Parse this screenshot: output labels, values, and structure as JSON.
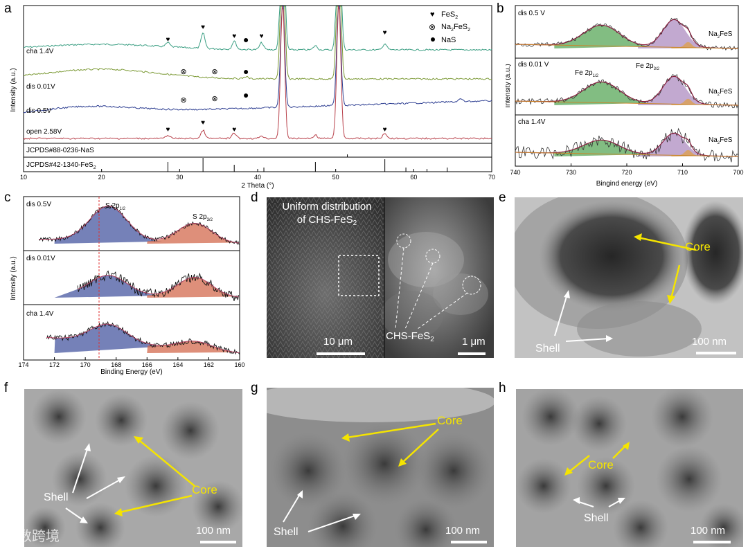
{
  "panels": {
    "a": "a",
    "b": "b",
    "c": "c",
    "d": "d",
    "e": "e",
    "f": "f",
    "g": "g",
    "h": "h"
  },
  "panel_a": {
    "legend": [
      "FeS2",
      "Na2FeS2",
      "NaS"
    ],
    "curves": [
      "cha 1.4V",
      "dis 0.01V",
      "dis 0.5V",
      "open 2.58V"
    ],
    "refs": [
      "JCPDS#88-0236-NaS",
      "JCPDS#42-1340-FeS2"
    ],
    "xlabel": "2 Theta (°)",
    "ylabel": "Intensity (a.u.)",
    "xticks": [
      "10",
      "20",
      "30",
      "40",
      "50",
      "60",
      "70"
    ]
  },
  "panel_b": {
    "rows": [
      "dis 0.5 V",
      "dis 0.01 V",
      "cha 1.4V"
    ],
    "peak_fe_half": "Fe 2p1/2",
    "peak_fe_three": "Fe 2p3/2",
    "compound": "Na2FeS",
    "xlabel": "Bingind energy (eV)",
    "ylabel": "Intensity (a.u.)",
    "xticks": [
      "740",
      "730",
      "720",
      "710",
      "700"
    ]
  },
  "panel_c": {
    "rows": [
      "dis 0.5V",
      "dis 0.01V",
      "cha 1.4V"
    ],
    "peak_s_half": "S 2p1/2",
    "peak_s_three": "S 2p3/2",
    "xlabel": "Binding Energy (eV)",
    "ylabel": "Intensity (a.u.)",
    "xticks": [
      "174",
      "172",
      "170",
      "168",
      "166",
      "164",
      "162",
      "160"
    ]
  },
  "panel_d": {
    "caption_line1": "Uniform distribution",
    "caption_line2": "of CHS-FeS2",
    "label": "CHS-FeS2",
    "scale_left": "10 μm",
    "scale_right": "1 μm"
  },
  "panel_e": {
    "core": "Core",
    "shell": "Shell",
    "scale": "100 nm"
  },
  "panel_f": {
    "core": "Core",
    "shell": "Shell",
    "scale": "100 nm"
  },
  "panel_g": {
    "core": "Core",
    "shell": "Shell",
    "scale": "100 nm"
  },
  "panel_h": {
    "core": "Core",
    "shell": "Shell",
    "scale": "100 nm"
  },
  "watermark": "大数跨境",
  "colors": {
    "cha": "#3a9e82",
    "dis001": "#7c9a36",
    "dis05": "#2c3d91",
    "open": "#b8404a",
    "green_fill": "#3f9a3f",
    "purple_fill": "#9a6fb0",
    "blue_fill": "#3a4c9a",
    "red_fill": "#d36a4e",
    "yellow": "#f5e400"
  }
}
